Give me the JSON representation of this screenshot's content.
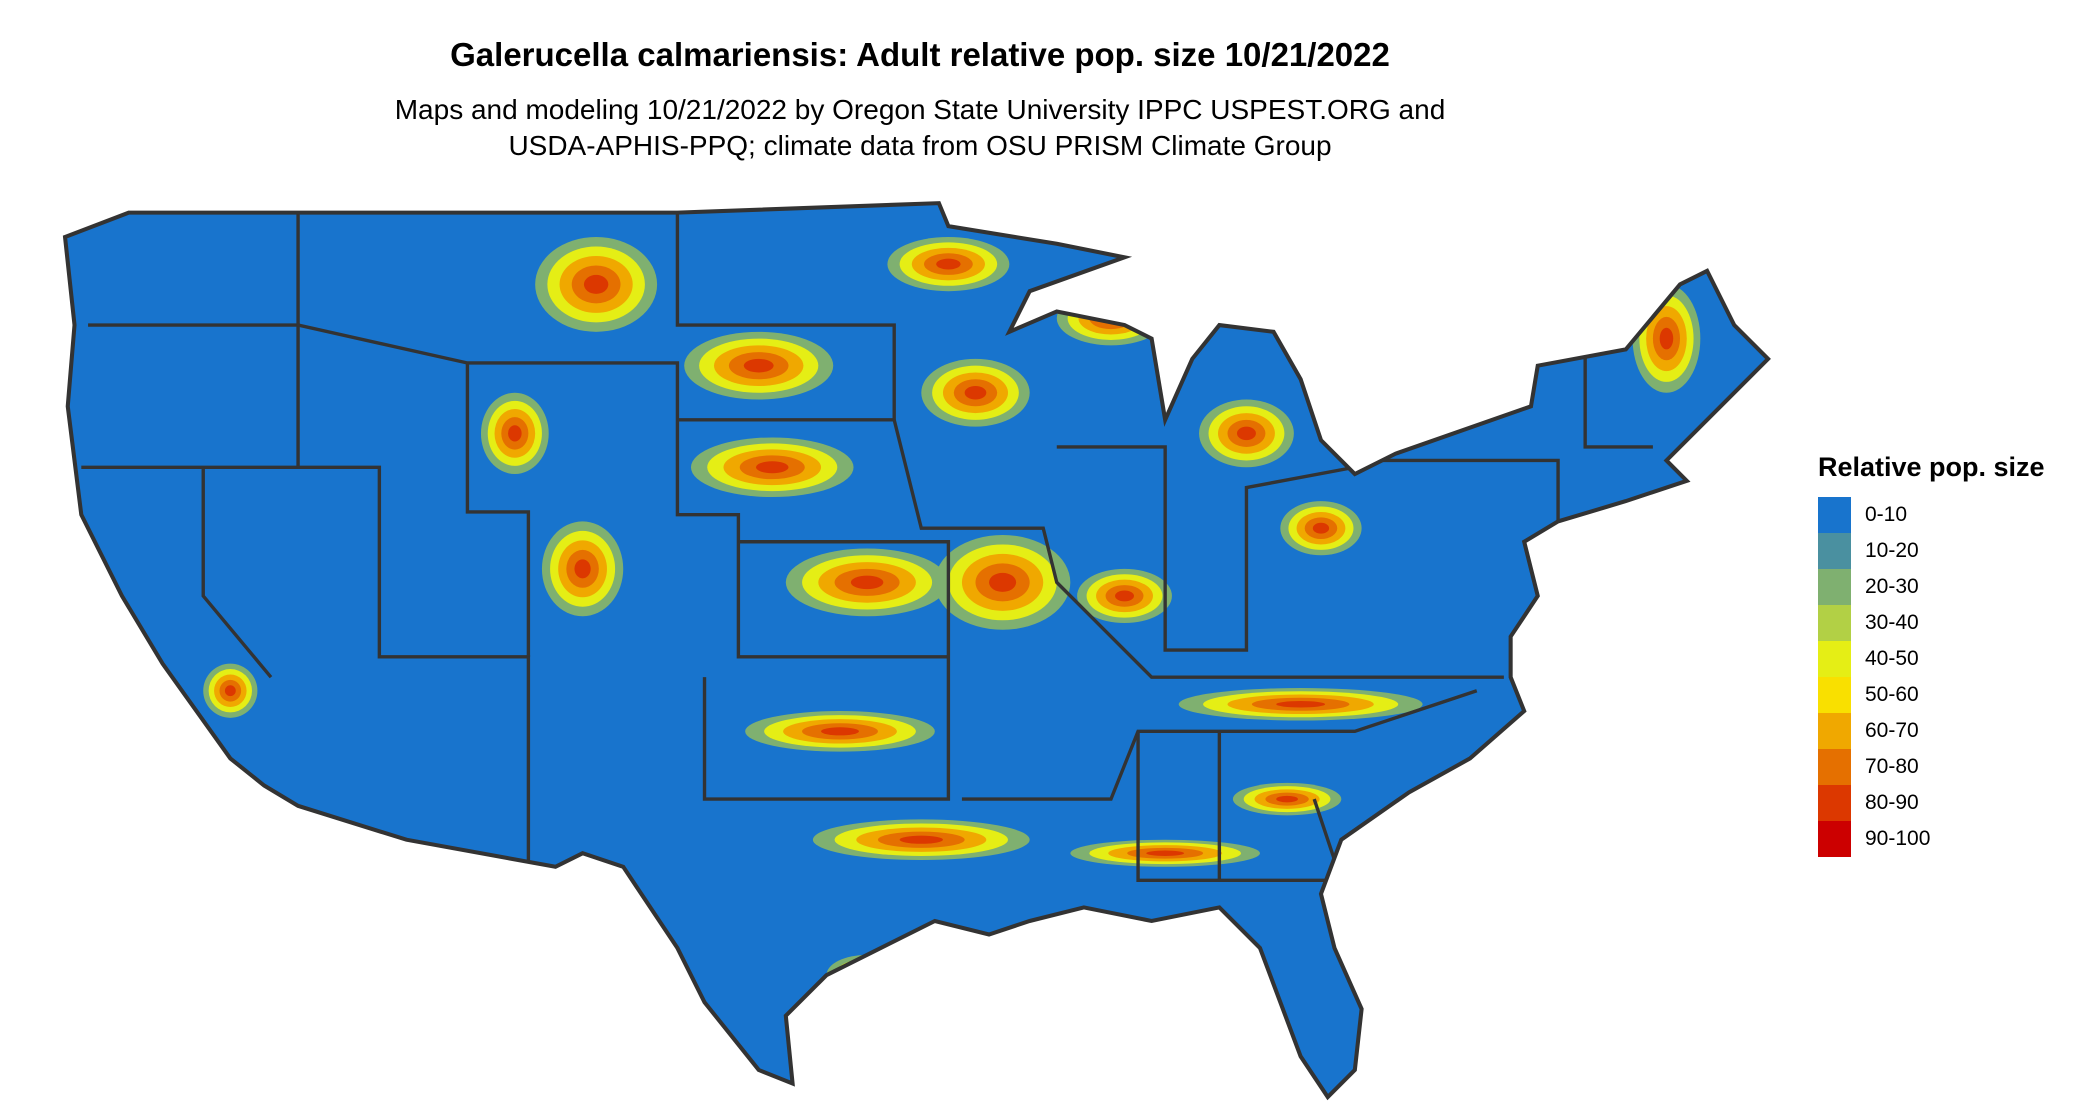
{
  "title": "Galerucella calmariensis: Adult relative pop. size 10/21/2022",
  "subtitle_lines": [
    "Maps and modeling 10/21/2022 by Oregon State University IPPC USPEST.ORG and",
    "USDA-APHIS-PPQ; climate data from OSU PRISM Climate Group"
  ],
  "legend": {
    "title": "Relative pop. size",
    "items": [
      {
        "label": "0-10",
        "color": "#1874CD"
      },
      {
        "label": "10-20",
        "color": "#4A90A0"
      },
      {
        "label": "20-30",
        "color": "#7FB070"
      },
      {
        "label": "30-40",
        "color": "#B2D045"
      },
      {
        "label": "40-50",
        "color": "#E5EE15"
      },
      {
        "label": "50-60",
        "color": "#F9E000"
      },
      {
        "label": "60-70",
        "color": "#F0A800"
      },
      {
        "label": "70-80",
        "color": "#E57000"
      },
      {
        "label": "80-90",
        "color": "#DC3800"
      },
      {
        "label": "90-100",
        "color": "#CC0000"
      }
    ]
  },
  "map": {
    "region": "Contiguous United States",
    "border_color": "#333333"
  }
}
